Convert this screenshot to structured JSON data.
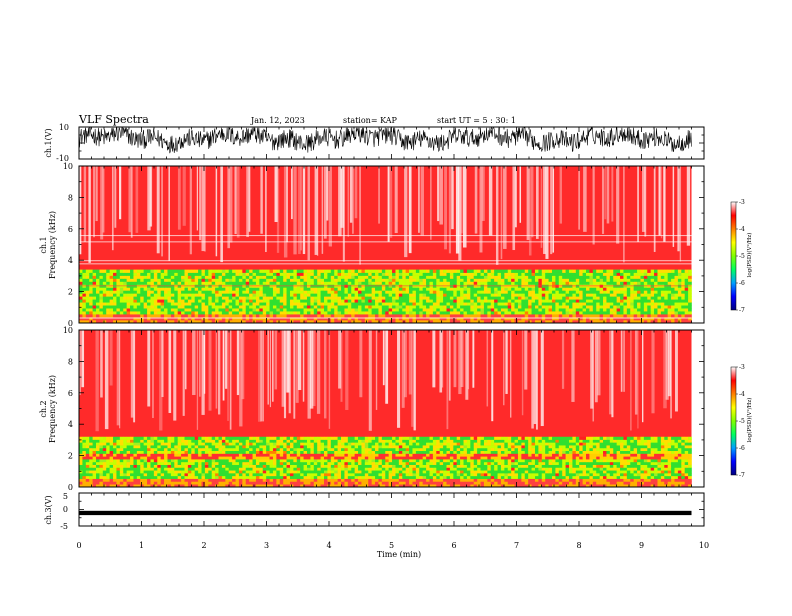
{
  "header": {
    "title": "VLF Spectra",
    "date": "Jan. 12, 2023",
    "station": "station= KAP",
    "start_ut": "start  UT =   5 : 30: 1"
  },
  "colors": {
    "spectrogram_high": "#ff2020",
    "spectrogram_mid": "#ffe000",
    "spectrogram_low": "#20e020",
    "trace": "#000000"
  },
  "chart_data": [
    {
      "type": "line",
      "id": "ch1-waveform",
      "ylabel": "ch.1(V)",
      "ylim": [
        -10,
        10
      ],
      "yticks": [
        "10",
        "-10"
      ],
      "xlim": [
        0,
        10
      ],
      "description_values": "dense noisy waveform mostly between about -3 and 9 V, data from 0 to ~9.8 min"
    },
    {
      "type": "heatmap",
      "id": "ch1-spectrogram",
      "ylabel_line1": "ch.1",
      "ylabel_line2": "Frequency (kHz)",
      "ylim": [
        0,
        10
      ],
      "yticks": [
        "0",
        "2",
        "4",
        "6",
        "8",
        "10"
      ],
      "xlim": [
        0,
        9.8
      ],
      "colorbar": {
        "label": "log(PSD)(V²/Hz)",
        "range": [
          -7,
          -3
        ],
        "ticks": [
          "-3",
          "-4",
          "-5",
          "-6",
          "-7"
        ],
        "colors": [
          "#000080",
          "#0000ff",
          "#00a0ff",
          "#00ff60",
          "#80ff00",
          "#ffff00",
          "#ff8000",
          "#ff0000",
          "#ffffff"
        ]
      },
      "bands": [
        {
          "from_khz": 0,
          "to_khz": 3.4,
          "level": "mixed green/yellow/red (~-4.5 to -5.5)"
        },
        {
          "from_khz": 3.4,
          "to_khz": 10,
          "level": "red/white (~-3 to -4)"
        }
      ]
    },
    {
      "type": "heatmap",
      "id": "ch2-spectrogram",
      "ylabel_line1": "ch.2",
      "ylabel_line2": "Frequency (kHz)",
      "ylim": [
        0,
        10
      ],
      "yticks": [
        "0",
        "2",
        "4",
        "6",
        "8",
        "10"
      ],
      "xlim": [
        0,
        9.8
      ],
      "colorbar": {
        "label": "log(PSD)(V²/Hz)",
        "range": [
          -7,
          -3
        ],
        "ticks": [
          "-3",
          "-4",
          "-5",
          "-6",
          "-7"
        ],
        "colors": [
          "#000080",
          "#0000ff",
          "#00a0ff",
          "#00ff60",
          "#80ff00",
          "#ffff00",
          "#ff8000",
          "#ff0000",
          "#ffffff"
        ]
      },
      "bands": [
        {
          "from_khz": 0,
          "to_khz": 3.2,
          "level": "mostly green/yellow (~-5)"
        },
        {
          "from_khz": 3.2,
          "to_khz": 10,
          "level": "red (~-3.5)"
        }
      ]
    },
    {
      "type": "line",
      "id": "ch3-waveform",
      "ylabel": "ch.3(V)",
      "ylim": [
        -5,
        5
      ],
      "yticks": [
        "5",
        "0",
        "-5"
      ],
      "xlim": [
        0,
        10
      ],
      "description_values": "narrow thick trace around -1 V from 0 to ~9.8 min"
    }
  ],
  "x_axis": {
    "label": "Time (min)",
    "ticks": [
      "0",
      "1",
      "2",
      "3",
      "4",
      "5",
      "6",
      "7",
      "8",
      "9",
      "10"
    ],
    "range": [
      0,
      10
    ]
  }
}
